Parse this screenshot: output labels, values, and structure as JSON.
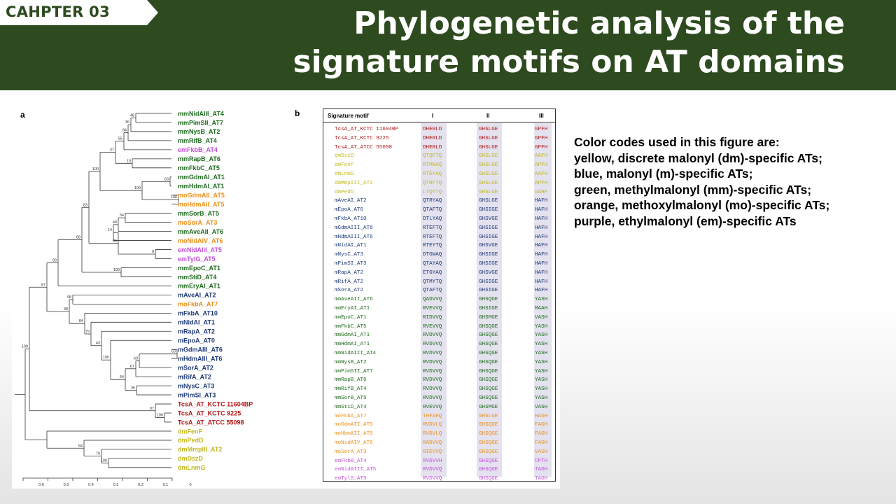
{
  "header": {
    "chapter_label": "CAHPTER 03",
    "title_line1": "Phylogenetic analysis of the",
    "title_line2": "signature motifs on AT domains"
  },
  "colors": {
    "header_bg": "#2e4b1f",
    "green": "#1f6b1f",
    "blue": "#1f3a78",
    "orange": "#e8901c",
    "purple": "#c050d8",
    "red": "#b01818",
    "yellow": "#c2b820"
  },
  "figure": {
    "panel_a_label": "a",
    "panel_b_label": "b",
    "tree": {
      "axis_ticks": [
        "0.6",
        "0.5",
        "0.4",
        "0.3",
        "0.2",
        "0.1",
        "0"
      ],
      "leaves": [
        {
          "name": "mmNidAIII_AT4",
          "color": "green"
        },
        {
          "name": "mmPimSII_AT7",
          "color": "green"
        },
        {
          "name": "mmNysB_AT2",
          "color": "green"
        },
        {
          "name": "mmRifB_AT4",
          "color": "green"
        },
        {
          "name": "emFkbB_AT4",
          "color": "purple"
        },
        {
          "name": "mmRapB_AT6",
          "color": "green"
        },
        {
          "name": "mmFkbC_AT5",
          "color": "green"
        },
        {
          "name": "mmGdmAI_AT1",
          "color": "green"
        },
        {
          "name": "mmHdmAI_AT1",
          "color": "green"
        },
        {
          "name": "moGdmAII_AT5",
          "color": "orange"
        },
        {
          "name": "moHdmAII_AT5",
          "color": "orange"
        },
        {
          "name": "mmSorB_AT5",
          "color": "green"
        },
        {
          "name": "moSorA_AT3",
          "color": "orange"
        },
        {
          "name": "mmAveAII_AT6",
          "color": "green"
        },
        {
          "name": "moNidAIV_AT6",
          "color": "orange"
        },
        {
          "name": "emNidAIII_AT5",
          "color": "purple"
        },
        {
          "name": "emTylG_AT5",
          "color": "purple"
        },
        {
          "name": "mmEpoC_AT1",
          "color": "green"
        },
        {
          "name": "mmStiD_AT4",
          "color": "green"
        },
        {
          "name": "mmEryAI_AT1",
          "color": "green"
        },
        {
          "name": "mAveAI_AT2",
          "color": "blue"
        },
        {
          "name": "moFkbA_AT7",
          "color": "orange"
        },
        {
          "name": "mFkbA_AT10",
          "color": "blue"
        },
        {
          "name": "mNidAI_AT1",
          "color": "blue"
        },
        {
          "name": "mRapA_AT2",
          "color": "blue"
        },
        {
          "name": "mEpoA_AT0",
          "color": "blue"
        },
        {
          "name": "mGdmAIII_AT6",
          "color": "blue"
        },
        {
          "name": "mHdmAIII_AT6",
          "color": "blue"
        },
        {
          "name": "mSorA_AT2",
          "color": "blue"
        },
        {
          "name": "mRifA_AT2",
          "color": "blue"
        },
        {
          "name": "mNysC_AT3",
          "color": "blue"
        },
        {
          "name": "mPimSI_AT3",
          "color": "blue"
        },
        {
          "name": "TcsA_AT_KCTC 11604BP",
          "color": "red"
        },
        {
          "name": "TcsA_AT_KCTC 9225",
          "color": "red"
        },
        {
          "name": "TcsA_AT_ATCC 55098",
          "color": "red"
        },
        {
          "name": "dmFenF",
          "color": "yellow"
        },
        {
          "name": "dmPedD",
          "color": "yellow"
        },
        {
          "name": "dmMmpIII_AT2",
          "color": "yellow"
        },
        {
          "name": "dmDszD",
          "color": "yellow"
        },
        {
          "name": "dmLnmG",
          "color": "yellow"
        }
      ],
      "bootstrap_values": [
        "48",
        "36",
        "84",
        "55",
        "10",
        "37",
        "63",
        "100",
        "100",
        "100",
        "54",
        "48",
        "14",
        "0",
        "84",
        "83",
        "100",
        "88",
        "99",
        "98",
        "63",
        "60",
        "67",
        "36",
        "54",
        "100",
        "43",
        "79",
        "84",
        "38",
        "87",
        "100",
        "97",
        "100",
        "100",
        "79",
        "64"
      ]
    },
    "table": {
      "header_motif": "Signature motif",
      "header_I": "I",
      "header_II": "II",
      "header_III": "III",
      "rows": [
        {
          "name": "TcsA_AT_KCTC 11604BP",
          "m1": "DHERLD",
          "m2": "GHSLGE",
          "m3": "GPFH",
          "color": "red"
        },
        {
          "name": "TcsA_AT_KCTC 9225",
          "m1": "DHERLD",
          "m2": "GHSLGE",
          "m3": "GPFH",
          "color": "red"
        },
        {
          "name": "TcsA_AT_ATCC 55098",
          "m1": "DHERLD",
          "m2": "GHSLGE",
          "m3": "GPFH",
          "color": "red"
        },
        {
          "name": "dmDszD",
          "m1": "QTQFTQ",
          "m2": "GHSLGE",
          "m3": "AAFH",
          "color": "yellow"
        },
        {
          "name": "dmFenF",
          "m1": "RTMNAQ",
          "m2": "GHSLGE",
          "m3": "APFH",
          "color": "yellow"
        },
        {
          "name": "dmLnmG",
          "m1": "RTEYAQ",
          "m2": "GHSLGE",
          "m3": "AAFH",
          "color": "yellow"
        },
        {
          "name": "dmMmpIII_AT2",
          "m1": "QTRFTQ",
          "m2": "GHSLGE",
          "m3": "APFH",
          "color": "yellow"
        },
        {
          "name": "dmPedD",
          "m1": "LTQYTQ",
          "m2": "GHSLGE",
          "m3": "GAHF",
          "color": "yellow"
        },
        {
          "name": "mAveAI_AT2",
          "m1": "QTRYAQ",
          "m2": "GHSLGE",
          "m3": "HAFH",
          "color": "blue"
        },
        {
          "name": "mEpoA_AT0",
          "m1": "QTAFTQ",
          "m2": "GHSIGE",
          "m3": "HAFH",
          "color": "blue"
        },
        {
          "name": "mFkbA_AT10",
          "m1": "DTLYAQ",
          "m2": "GHSVGE",
          "m3": "HAFH",
          "color": "blue"
        },
        {
          "name": "mGdmAIII_AT6",
          "m1": "RTEFTQ",
          "m2": "GHSIGE",
          "m3": "HAFH",
          "color": "blue"
        },
        {
          "name": "mHdmAIII_AT6",
          "m1": "RTEFTQ",
          "m2": "GHSIGE",
          "m3": "HAFH",
          "color": "blue"
        },
        {
          "name": "mNidAI_AT1",
          "m1": "RTEYTQ",
          "m2": "GHSVGE",
          "m3": "HAFH",
          "color": "blue"
        },
        {
          "name": "mNysC_AT3",
          "m1": "DTGWAQ",
          "m2": "GHSIGE",
          "m3": "HAFH",
          "color": "blue"
        },
        {
          "name": "mPimSI_AT3",
          "m1": "QTAYAQ",
          "m2": "GHSIGE",
          "m3": "HAFH",
          "color": "blue"
        },
        {
          "name": "mRapA_AT2",
          "m1": "ETGYAQ",
          "m2": "GHSVGE",
          "m3": "HAFH",
          "color": "blue"
        },
        {
          "name": "mRifA_AT2",
          "m1": "QTMYTQ",
          "m2": "GHSIGE",
          "m3": "HAFH",
          "color": "blue"
        },
        {
          "name": "mSorA_AT2",
          "m1": "QTAFTQ",
          "m2": "GHSIGE",
          "m3": "HAFH",
          "color": "blue"
        },
        {
          "name": "mmAveAII_AT6",
          "m1": "QADVVQ",
          "m2": "GHSQGE",
          "m3": "YASH",
          "color": "green"
        },
        {
          "name": "mmEryAI_AT1",
          "m1": "RVEVVQ",
          "m2": "GHSIGE",
          "m3": "MAAH",
          "color": "green"
        },
        {
          "name": "mmEpoC_AT1",
          "m1": "RIDVVQ",
          "m2": "GHSMGE",
          "m3": "VASH",
          "color": "green"
        },
        {
          "name": "mmFkbC_AT5",
          "m1": "RVEVVQ",
          "m2": "GHSQGE",
          "m3": "YASH",
          "color": "green"
        },
        {
          "name": "mmGdmAI_AT1",
          "m1": "RVDVVQ",
          "m2": "GHSQGE",
          "m3": "YASH",
          "color": "green"
        },
        {
          "name": "mmHdmAI_AT1",
          "m1": "RVDVVQ",
          "m2": "GHSQGE",
          "m3": "YASH",
          "color": "green"
        },
        {
          "name": "mmNidAIII_AT4",
          "m1": "RVDVVQ",
          "m2": "GHSQGE",
          "m3": "YASH",
          "color": "green"
        },
        {
          "name": "mmNysB_AT2",
          "m1": "RVDVVQ",
          "m2": "GHSQGE",
          "m3": "YASH",
          "color": "green"
        },
        {
          "name": "mmPimSII_AT7",
          "m1": "RVDVVQ",
          "m2": "GHSQGE",
          "m3": "YASH",
          "color": "green"
        },
        {
          "name": "mmRapB_AT6",
          "m1": "RVDVVQ",
          "m2": "GHSQGE",
          "m3": "YASH",
          "color": "green"
        },
        {
          "name": "mmRifB_AT4",
          "m1": "RVDVVQ",
          "m2": "GHSQGE",
          "m3": "YASH",
          "color": "green"
        },
        {
          "name": "mmSorB_AT5",
          "m1": "RVDVVQ",
          "m2": "GHSQGE",
          "m3": "YASH",
          "color": "green"
        },
        {
          "name": "mmStiD_AT4",
          "m1": "RVEVVQ",
          "m2": "GHSMGE",
          "m3": "VASH",
          "color": "green"
        },
        {
          "name": "moFkbA_AT7",
          "m1": "THFAHQ",
          "m2": "GHSLGE",
          "m3": "HAGH",
          "color": "orange"
        },
        {
          "name": "moGdmAII_AT5",
          "m1": "RVDVLQ",
          "m2": "GHSQGE",
          "m3": "FAGH",
          "color": "orange"
        },
        {
          "name": "moHbmAII_AT5",
          "m1": "RVDVLQ",
          "m2": "GHSQGE",
          "m3": "FAGH",
          "color": "orange"
        },
        {
          "name": "moNidAIV_AT6",
          "m1": "RADVVQ",
          "m2": "GHSQGE",
          "m3": "FAGH",
          "color": "orange"
        },
        {
          "name": "moSorA_AT3",
          "m1": "RIEVVQ",
          "m2": "GHSQGE",
          "m3": "VASH",
          "color": "orange"
        },
        {
          "name": "emFkbB_AT4",
          "m1": "RVDVVH",
          "m2": "GHSQGE",
          "m3": "CPTH",
          "color": "purple"
        },
        {
          "name": "emNidAIII_AT5",
          "m1": "RVDVVQ",
          "m2": "GHSQGE",
          "m3": "TAGH",
          "color": "purple"
        },
        {
          "name": "emTylG_AT5",
          "m1": "RVDVVQ",
          "m2": "GHSQGE",
          "m3": "TAGH",
          "color": "purple"
        }
      ]
    }
  },
  "legend": {
    "line1": "Color codes used in this figure are:",
    "line2": "yellow, discrete malonyl (dm)-specific ATs;",
    "line3": "blue, malonyl (m)-specific ATs;",
    "line4": "green, methylmalonyl (mm)-specific ATs;",
    "line5": "orange, methoxylmalonyl (mo)-specific ATs;",
    "line6": "purple, ethylmalonyl (em)-specific ATs"
  }
}
